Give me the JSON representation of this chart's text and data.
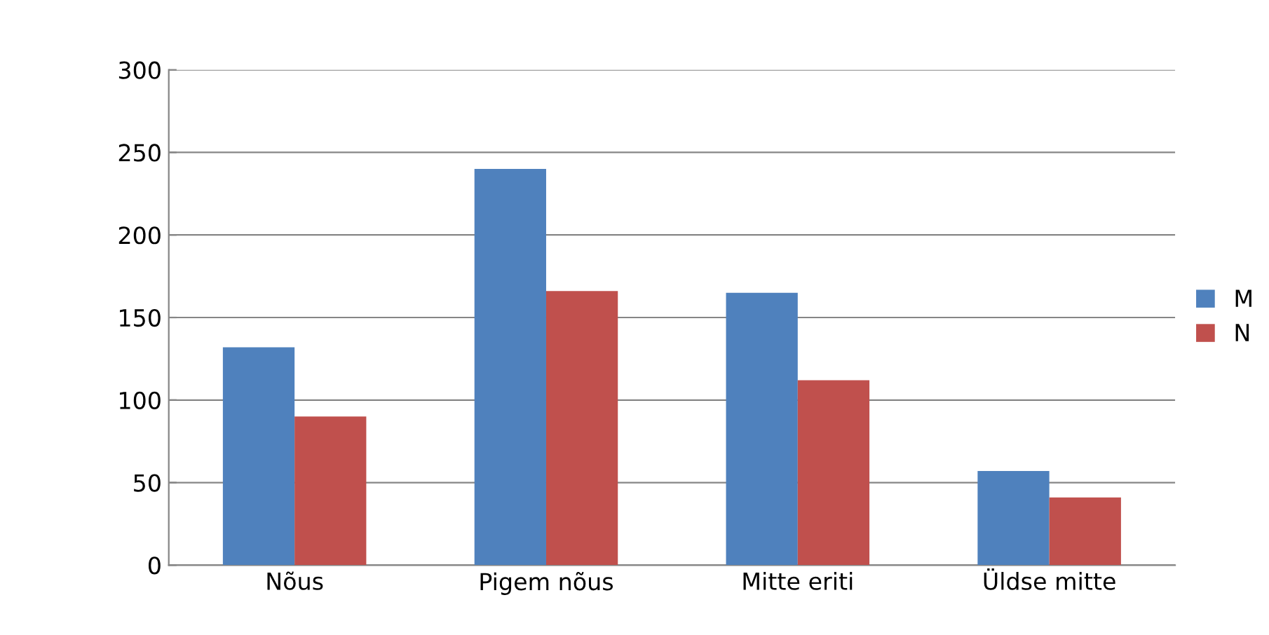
{
  "chart_data": {
    "type": "bar",
    "categories": [
      "Nõus",
      "Pigem nõus",
      "Mitte eriti",
      "Üldse mitte"
    ],
    "series": [
      {
        "name": "M",
        "color": "#4f81bd",
        "values": [
          132,
          240,
          165,
          57
        ]
      },
      {
        "name": "N",
        "color": "#c0504d",
        "values": [
          90,
          166,
          112,
          41
        ]
      }
    ],
    "ylim": [
      0,
      300
    ],
    "yticks": [
      0,
      50,
      100,
      150,
      200,
      250,
      300
    ],
    "grid": "y",
    "legend": "right"
  }
}
